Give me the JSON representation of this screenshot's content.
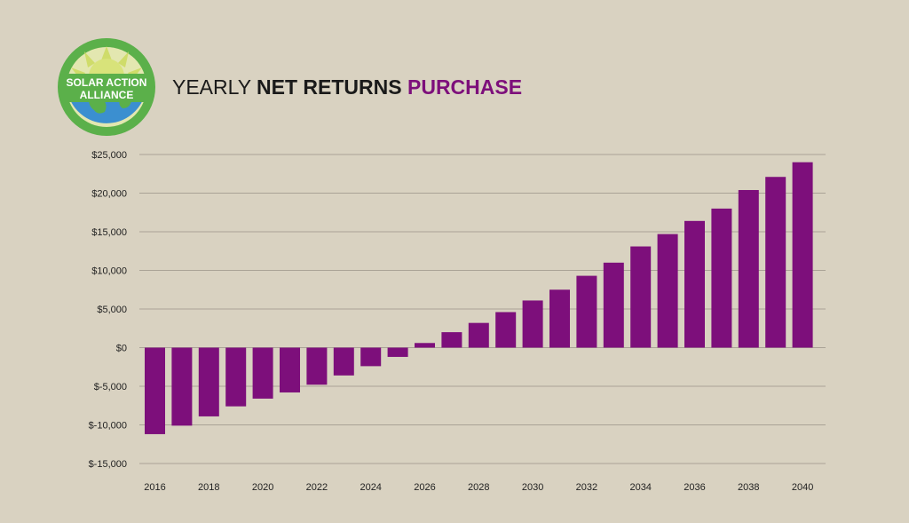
{
  "logo": {
    "line1": "SOLAR ACTION",
    "line2": "ALLIANCE"
  },
  "title": {
    "part1": "YEARLY ",
    "part2": "NET RETURNS",
    "part3": " PURCHASE"
  },
  "colors": {
    "background": "#d9d2c1",
    "bar": "#7d0f7b",
    "accent_title": "#7d0f7b",
    "grid": "#aaa396",
    "logo_green": "#5bb04a",
    "logo_blue": "#3b8fd0",
    "logo_yellow": "#d8e37a"
  },
  "chart_data": {
    "type": "bar",
    "title": "YEARLY NET RETURNS PURCHASE",
    "xlabel": "",
    "ylabel": "",
    "ylim": [
      -15000,
      25000
    ],
    "y_ticks": [
      "$25,000",
      "$20,000",
      "$15,000",
      "$10,000",
      "$5,000",
      "$0",
      "$-5,000",
      "$-10,000",
      "$-15,000"
    ],
    "y_tick_values": [
      25000,
      20000,
      15000,
      10000,
      5000,
      0,
      -5000,
      -10000,
      -15000
    ],
    "x_tick_labels": [
      "2016",
      "2018",
      "2020",
      "2022",
      "2024",
      "2026",
      "2028",
      "2030",
      "2032",
      "2034",
      "2036",
      "2038",
      "2040"
    ],
    "categories": [
      "2016",
      "2017",
      "2018",
      "2019",
      "2020",
      "2021",
      "2022",
      "2023",
      "2024",
      "2025",
      "2026",
      "2027",
      "2028",
      "2029",
      "2030",
      "2031",
      "2032",
      "2033",
      "2034",
      "2035",
      "2036",
      "2037",
      "2038",
      "2039",
      "2040"
    ],
    "values": [
      -11200,
      -10100,
      -8900,
      -7600,
      -6600,
      -5800,
      -4800,
      -3600,
      -2400,
      -1200,
      600,
      2000,
      3200,
      4600,
      6100,
      7500,
      9300,
      11000,
      13100,
      14700,
      16400,
      18000,
      20400,
      22100,
      24000
    ],
    "grid": true,
    "legend": "none"
  }
}
